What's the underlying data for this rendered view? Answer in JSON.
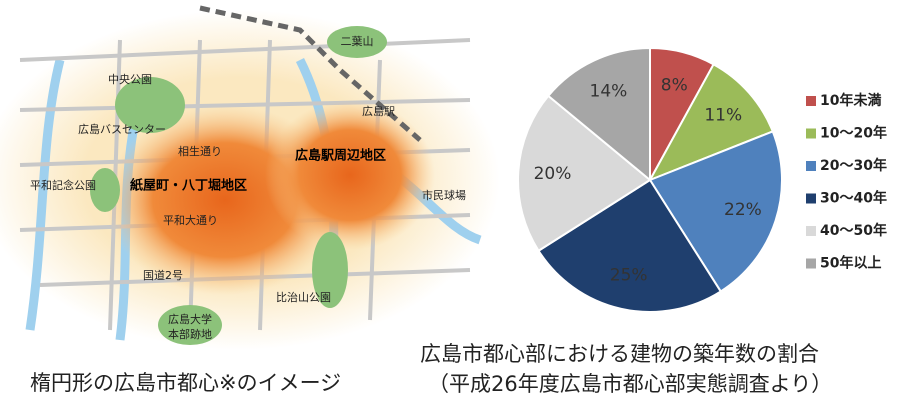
{
  "map": {
    "labels": [
      "二葉山",
      "中央公園",
      "広島駅",
      "広島バスセンター",
      "相生通り",
      "広島駅周辺地区",
      "平和記念公園",
      "紙屋町・八丁堀地区",
      "市民球場",
      "平和大通り",
      "国道2号",
      "比治山公園",
      "広島大学",
      "本部跡地"
    ],
    "caption": "楕円形の広島市都心※のイメージ"
  },
  "chart_data": {
    "type": "pie",
    "title": "広島市都心部における建物の築年数の割合",
    "subtitle": "（平成26年度広島市都心部実態調査より）",
    "categories": [
      "10年未満",
      "10～20年",
      "20～30年",
      "30～40年",
      "40～50年",
      "50年以上"
    ],
    "values": [
      8,
      11,
      22,
      25,
      20,
      14
    ],
    "value_labels": [
      "8%",
      "11%",
      "22%",
      "25%",
      "20%",
      "14%"
    ],
    "colors": [
      "#c0504d",
      "#9bbb59",
      "#4f81bd",
      "#1f3f6e",
      "#d9d9d9",
      "#a6a6a6"
    ],
    "legend": "right"
  }
}
